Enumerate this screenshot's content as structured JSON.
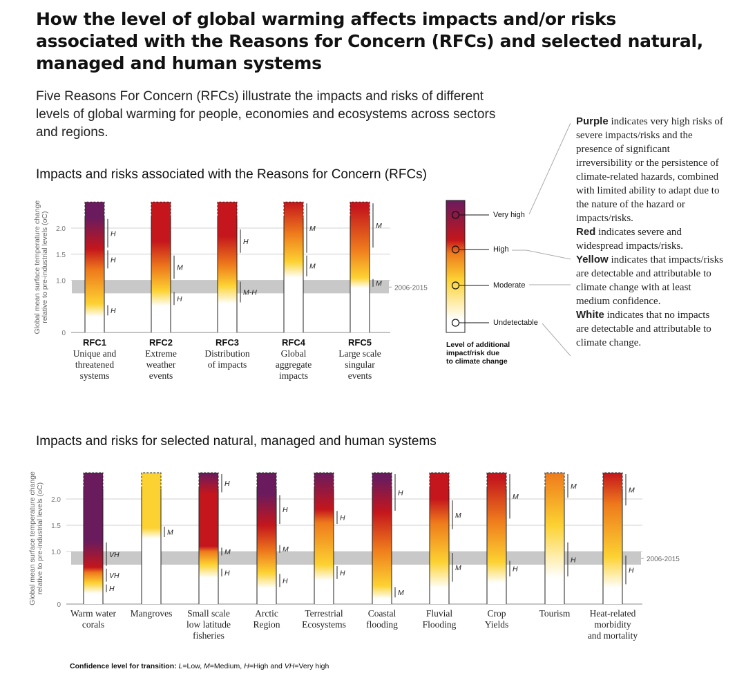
{
  "title": "How the level of global warming affects impacts and/or risks associated with the Reasons for Concern (RFCs) and selected natural, managed and human systems",
  "intro": "Five Reasons For Concern (RFCs) illustrate the impacts and risks of different levels of global warming for people, economies and ecosystems across sectors and regions.",
  "section1": "Impacts and risks associated with the Reasons for Concern (RFCs)",
  "section2": "Impacts and risks for selected natural, managed and human systems",
  "colors": {
    "purple": "#6a1b5e",
    "red": "#c4161c",
    "orange": "#ee7a1c",
    "yellow": "#fcd232",
    "white": "#ffffff",
    "band": "#c8c8c8"
  },
  "legend": {
    "levels": [
      "Very high",
      "High",
      "Moderate",
      "Undetectable"
    ],
    "caption": [
      "Level of additional",
      "impact/risk due",
      "to climate change"
    ],
    "purple_word": "Purple",
    "purple_text": " indicates very high risks of severe impacts/risks and the presence of significant irreversibility or the persistence of climate-related hazards, combined with limited ability to adapt due to the nature of the hazard or impacts/risks.",
    "red_word": "Red",
    "red_text": " indicates severe and widespread impacts/risks.",
    "yellow_word": "Yellow",
    "yellow_text": " indicates that impacts/risks are detectable and attributable to climate change with at least medium confidence.",
    "white_word": "White",
    "white_text": " indicates that no impacts are detectable and attributable to climate change."
  },
  "footnote_prefix": "Confidence level  for transition: ",
  "footnote_items": [
    {
      "letter": "L",
      "rest": "=Low, "
    },
    {
      "letter": "M",
      "rest": "=Medium, "
    },
    {
      "letter": "H",
      "rest": "=High and "
    },
    {
      "letter": "VH",
      "rest": "=Very high"
    }
  ],
  "chart_data": [
    {
      "type": "bar",
      "title": "Impacts and risks associated with the Reasons for Concern (RFCs)",
      "ylabel": [
        "Global mean surface temperature change",
        "relative to pre-industrial levels (oC)"
      ],
      "ylim": [
        0,
        2.5
      ],
      "yticks": [
        "0",
        "1.0",
        "1.5",
        "2.0"
      ],
      "band": {
        "label": "2006-2015",
        "range": [
          0.75,
          1.0
        ]
      },
      "categories": [
        {
          "name": "RFC1",
          "label": [
            "Unique and",
            "threatened",
            "systems"
          ],
          "stops": [
            [
              0.3,
              "white"
            ],
            [
              0.55,
              "yellow"
            ],
            [
              1.2,
              "orange"
            ],
            [
              1.6,
              "red"
            ],
            [
              2.2,
              "purple"
            ]
          ],
          "conf": [
            {
              "y0": 0.3,
              "y1": 0.55,
              "t": "H"
            },
            {
              "y0": 1.2,
              "y1": 1.6,
              "t": "H"
            },
            {
              "y0": 1.6,
              "y1": 2.2,
              "t": "H"
            }
          ]
        },
        {
          "name": "RFC2",
          "label": [
            "Extreme",
            "weather",
            "events"
          ],
          "stops": [
            [
              0.5,
              "white"
            ],
            [
              0.8,
              "yellow"
            ],
            [
              1.25,
              "orange"
            ],
            [
              1.75,
              "red"
            ]
          ],
          "conf": [
            {
              "y0": 0.5,
              "y1": 0.8,
              "t": "H"
            },
            {
              "y0": 1.0,
              "y1": 1.5,
              "t": "M"
            }
          ]
        },
        {
          "name": "RFC3",
          "label": [
            "Distribution",
            "of impacts"
          ],
          "stops": [
            [
              0.55,
              "white"
            ],
            [
              0.9,
              "yellow"
            ],
            [
              1.3,
              "orange"
            ],
            [
              1.85,
              "red"
            ]
          ],
          "conf": [
            {
              "y0": 0.55,
              "y1": 1.0,
              "t": "M-H"
            },
            {
              "y0": 1.5,
              "y1": 2.0,
              "t": "H"
            }
          ]
        },
        {
          "name": "RFC4",
          "label": [
            "Global",
            "aggregate",
            "impacts"
          ],
          "stops": [
            [
              1.05,
              "white"
            ],
            [
              1.35,
              "yellow"
            ],
            [
              1.9,
              "orange"
            ],
            [
              2.5,
              "red"
            ]
          ],
          "conf": [
            {
              "y0": 1.05,
              "y1": 1.5,
              "t": "M"
            },
            {
              "y0": 1.5,
              "y1": 2.5,
              "t": "M"
            }
          ]
        },
        {
          "name": "RFC5",
          "label": [
            "Large scale",
            "singular",
            "events"
          ],
          "stops": [
            [
              0.85,
              "white"
            ],
            [
              1.05,
              "yellow"
            ],
            [
              1.6,
              "orange"
            ],
            [
              2.4,
              "red"
            ]
          ],
          "conf": [
            {
              "y0": 0.85,
              "y1": 1.05,
              "t": "M"
            },
            {
              "y0": 1.6,
              "y1": 2.5,
              "t": "M"
            }
          ]
        }
      ]
    },
    {
      "type": "bar",
      "title": "Impacts and risks for selected natural, managed and human systems",
      "ylabel": [
        "Global mean surface temperature change",
        "relative to pre-industrial levels (oC)"
      ],
      "ylim": [
        0,
        2.5
      ],
      "yticks": [
        "0",
        "1.0",
        "1.5",
        "2.0"
      ],
      "band": {
        "label": "2006-2015",
        "range": [
          0.75,
          1.0
        ]
      },
      "categories": [
        {
          "label": [
            "Warm water",
            "corals"
          ],
          "stops": [
            [
              0.2,
              "white"
            ],
            [
              0.4,
              "yellow"
            ],
            [
              0.6,
              "orange"
            ],
            [
              0.7,
              "red"
            ],
            [
              1.2,
              "purple"
            ]
          ],
          "conf": [
            {
              "y0": 0.2,
              "y1": 0.4,
              "t": "H"
            },
            {
              "y0": 0.4,
              "y1": 0.7,
              "t": "VH"
            },
            {
              "y0": 0.7,
              "y1": 1.2,
              "t": "VH"
            }
          ]
        },
        {
          "label": [
            "Mangroves"
          ],
          "stops": [
            [
              1.25,
              "white"
            ],
            [
              1.45,
              "yellow"
            ],
            [
              2.5,
              "yellow"
            ]
          ],
          "conf": [
            {
              "y0": 1.25,
              "y1": 1.5,
              "t": "M"
            }
          ]
        },
        {
          "label": [
            "Small scale",
            "low latitude",
            "fisheries"
          ],
          "stops": [
            [
              0.5,
              "white"
            ],
            [
              0.75,
              "yellow"
            ],
            [
              1.0,
              "orange"
            ],
            [
              1.1,
              "red"
            ],
            [
              2.1,
              "red"
            ],
            [
              2.5,
              "purple"
            ]
          ],
          "conf": [
            {
              "y0": 0.5,
              "y1": 0.7,
              "t": "H"
            },
            {
              "y0": 0.9,
              "y1": 1.1,
              "t": "M"
            },
            {
              "y0": 2.1,
              "y1": 2.5,
              "t": "H"
            }
          ]
        },
        {
          "label": [
            "Arctic",
            "Region"
          ],
          "stops": [
            [
              0.3,
              "white"
            ],
            [
              0.6,
              "yellow"
            ],
            [
              1.0,
              "orange"
            ],
            [
              1.5,
              "red"
            ],
            [
              2.1,
              "purple"
            ]
          ],
          "conf": [
            {
              "y0": 0.3,
              "y1": 0.6,
              "t": "H"
            },
            {
              "y0": 0.95,
              "y1": 1.15,
              "t": "M"
            },
            {
              "y0": 1.5,
              "y1": 2.1,
              "t": "H"
            }
          ]
        },
        {
          "label": [
            "Terrestrial",
            "Ecosystems"
          ],
          "stops": [
            [
              0.45,
              "white"
            ],
            [
              0.75,
              "yellow"
            ],
            [
              1.55,
              "orange"
            ],
            [
              1.8,
              "red"
            ],
            [
              2.5,
              "purple"
            ]
          ],
          "conf": [
            {
              "y0": 0.45,
              "y1": 0.75,
              "t": "H"
            },
            {
              "y0": 1.5,
              "y1": 1.8,
              "t": "H"
            }
          ]
        },
        {
          "label": [
            "Coastal",
            "flooding"
          ],
          "stops": [
            [
              0.1,
              "white"
            ],
            [
              0.35,
              "yellow"
            ],
            [
              1.05,
              "orange"
            ],
            [
              1.75,
              "red"
            ],
            [
              2.4,
              "purple"
            ]
          ],
          "conf": [
            {
              "y0": 0.1,
              "y1": 0.35,
              "t": "M"
            },
            {
              "y0": 1.75,
              "y1": 2.5,
              "t": "H"
            }
          ]
        },
        {
          "label": [
            "Fluvial",
            "Flooding"
          ],
          "stops": [
            [
              0.3,
              "white"
            ],
            [
              0.8,
              "yellow"
            ],
            [
              1.55,
              "orange"
            ],
            [
              2.0,
              "red"
            ]
          ],
          "conf": [
            {
              "y0": 0.4,
              "y1": 1.0,
              "t": "M"
            },
            {
              "y0": 1.4,
              "y1": 2.0,
              "t": "M"
            }
          ]
        },
        {
          "label": [
            "Crop",
            "Yields"
          ],
          "stops": [
            [
              0.4,
              "white"
            ],
            [
              0.8,
              "yellow"
            ],
            [
              1.6,
              "orange"
            ],
            [
              2.4,
              "red"
            ]
          ],
          "conf": [
            {
              "y0": 0.5,
              "y1": 0.85,
              "t": "H"
            },
            {
              "y0": 1.6,
              "y1": 2.5,
              "t": "M"
            }
          ]
        },
        {
          "label": [
            "Tourism"
          ],
          "stops": [
            [
              0.5,
              "white"
            ],
            [
              1.5,
              "yellow"
            ],
            [
              2.5,
              "orange"
            ]
          ],
          "conf": [
            {
              "y0": 0.5,
              "y1": 1.2,
              "t": "H"
            },
            {
              "y0": 2.0,
              "y1": 2.5,
              "t": "M"
            }
          ]
        },
        {
          "label": [
            "Heat-related",
            "morbidity",
            "and mortality"
          ],
          "stops": [
            [
              0.3,
              "white"
            ],
            [
              0.9,
              "yellow"
            ],
            [
              1.9,
              "orange"
            ],
            [
              2.5,
              "red"
            ]
          ],
          "conf": [
            {
              "y0": 0.35,
              "y1": 0.95,
              "t": "H"
            },
            {
              "y0": 1.85,
              "y1": 2.5,
              "t": "M"
            }
          ]
        }
      ]
    }
  ]
}
